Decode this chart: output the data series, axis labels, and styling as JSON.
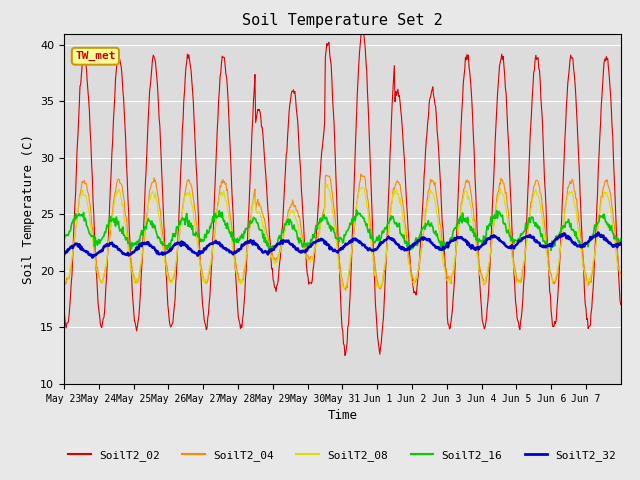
{
  "title": "Soil Temperature Set 2",
  "xlabel": "Time",
  "ylabel": "Soil Temperature (C)",
  "ylim": [
    10,
    41
  ],
  "yticks": [
    10,
    15,
    20,
    25,
    30,
    35,
    40
  ],
  "fig_bg": "#e8e8e8",
  "plot_bg": "#dcdcdc",
  "annotation_text": "TW_met",
  "annotation_color": "#cc0000",
  "annotation_bg": "#ffff99",
  "annotation_border": "#cc9900",
  "colors": {
    "SoilT2_02": "#dd0000",
    "SoilT2_04": "#ff8800",
    "SoilT2_08": "#dddd00",
    "SoilT2_16": "#00cc00",
    "SoilT2_32": "#0000cc"
  },
  "legend_labels": [
    "SoilT2_02",
    "SoilT2_04",
    "SoilT2_08",
    "SoilT2_16",
    "SoilT2_32"
  ],
  "date_labels": [
    "May 23",
    "May 24",
    "May 25",
    "May 26",
    "May 27",
    "May 28",
    "May 29",
    "May 30",
    "May 31",
    "Jun 1",
    "Jun 2",
    "Jun 3",
    "Jun 4",
    "Jun 5",
    "Jun 6",
    "Jun 7"
  ],
  "n_days": 16,
  "points_per_day": 48
}
